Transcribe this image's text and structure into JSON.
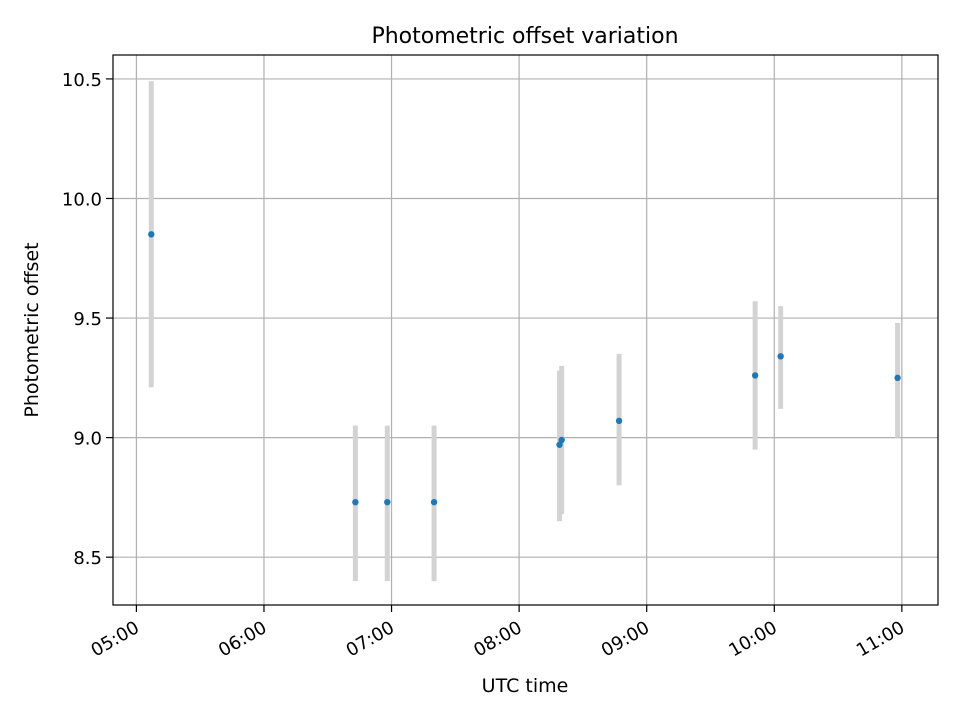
{
  "chart_data": {
    "type": "scatter",
    "title": "Photometric offset variation",
    "xlabel": "UTC time",
    "ylabel": "Photometric offset",
    "x_ticks": [
      "05:00",
      "06:00",
      "07:00",
      "08:00",
      "09:00",
      "10:00",
      "11:00"
    ],
    "x_tick_hours": [
      5,
      6,
      7,
      8,
      9,
      10,
      11
    ],
    "y_ticks": [
      "8.5",
      "9.0",
      "9.5",
      "10.0",
      "10.5"
    ],
    "y_tick_values": [
      8.5,
      9.0,
      9.5,
      10.0,
      10.5
    ],
    "xlim": [
      "04:49",
      "11:17"
    ],
    "ylim": [
      8.3,
      10.6
    ],
    "grid": true,
    "legend": "none",
    "colors": {
      "point": "#1f77b4",
      "errorbar": "#d3d3d3",
      "grid": "#b0b0b0"
    },
    "series": [
      {
        "points": [
          {
            "time": "05:07",
            "y": 9.85,
            "ymin": 9.21,
            "ymax": 10.49
          },
          {
            "time": "06:43",
            "y": 8.73,
            "ymin": 8.4,
            "ymax": 9.05
          },
          {
            "time": "06:58",
            "y": 8.73,
            "ymin": 8.4,
            "ymax": 9.05
          },
          {
            "time": "07:20",
            "y": 8.73,
            "ymin": 8.4,
            "ymax": 9.05
          },
          {
            "time": "08:19",
            "y": 8.97,
            "ymin": 8.65,
            "ymax": 9.28
          },
          {
            "time": "08:20",
            "y": 8.99,
            "ymin": 8.68,
            "ymax": 9.3
          },
          {
            "time": "08:47",
            "y": 9.07,
            "ymin": 8.8,
            "ymax": 9.35
          },
          {
            "time": "09:51",
            "y": 9.26,
            "ymin": 8.95,
            "ymax": 9.57
          },
          {
            "time": "10:03",
            "y": 9.34,
            "ymin": 9.12,
            "ymax": 9.55
          },
          {
            "time": "10:58",
            "y": 9.25,
            "ymin": 9.0,
            "ymax": 9.48
          }
        ]
      }
    ]
  }
}
